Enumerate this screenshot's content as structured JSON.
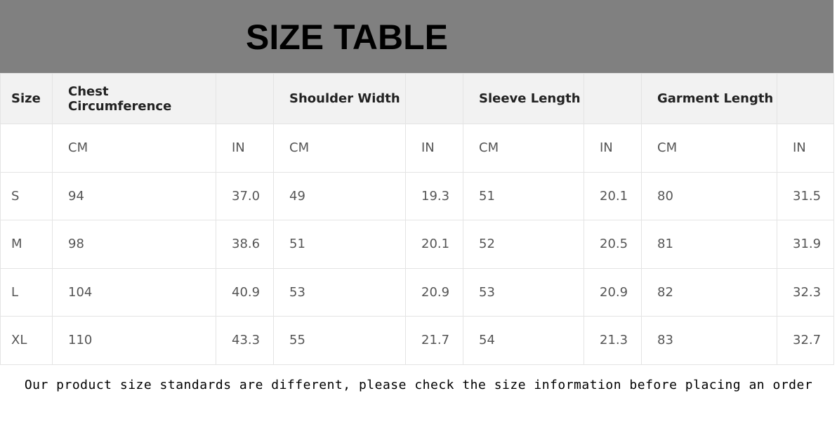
{
  "title": "SIZE TABLE",
  "header": [
    "Size",
    "Chest Circumference",
    "",
    "Shoulder Width",
    "",
    "Sleeve Length",
    "",
    "Garment Length",
    ""
  ],
  "units": [
    "",
    "CM",
    "IN",
    "CM",
    "IN",
    "CM",
    "IN",
    "CM",
    "IN"
  ],
  "rows": [
    [
      "S",
      "94",
      "37.0",
      "49",
      "19.3",
      "51",
      "20.1",
      "80",
      "31.5"
    ],
    [
      "M",
      "98",
      "38.6",
      "51",
      "20.1",
      "52",
      "20.5",
      "81",
      "31.9"
    ],
    [
      "L",
      "104",
      "40.9",
      "53",
      "20.9",
      "53",
      "20.9",
      "82",
      "32.3"
    ],
    [
      "XL",
      "110",
      "43.3",
      "55",
      "21.7",
      "54",
      "21.3",
      "83",
      "32.7"
    ]
  ],
  "note": "Our product size standards are different, please check the size information before placing an order"
}
